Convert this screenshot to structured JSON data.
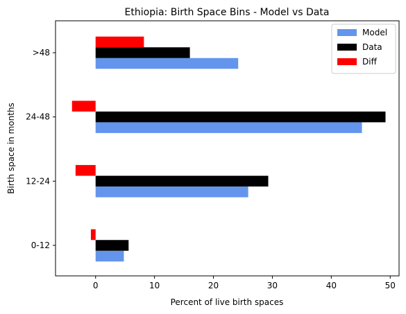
{
  "chart_data": {
    "type": "bar",
    "orientation": "horizontal",
    "title": "Ethiopia: Birth Space Bins - Model vs Data",
    "xlabel": "Percent of live birth spaces",
    "ylabel": "Birth space in months",
    "categories": [
      "0-12",
      "12-24",
      "24-48",
      ">48"
    ],
    "series": [
      {
        "name": "Model",
        "color": "#6495ED",
        "values": [
          4.8,
          25.9,
          45.2,
          24.2
        ]
      },
      {
        "name": "Data",
        "color": "#000000",
        "values": [
          5.6,
          29.3,
          49.2,
          16.0
        ]
      },
      {
        "name": "Diff",
        "color": "#FF0000",
        "values": [
          -0.8,
          -3.4,
          -4.0,
          8.2
        ]
      }
    ],
    "xlim": [
      -6.8,
      51.5
    ],
    "xticks": [
      0,
      10,
      20,
      30,
      40,
      50
    ],
    "legend_position": "upper right",
    "grid": false
  }
}
